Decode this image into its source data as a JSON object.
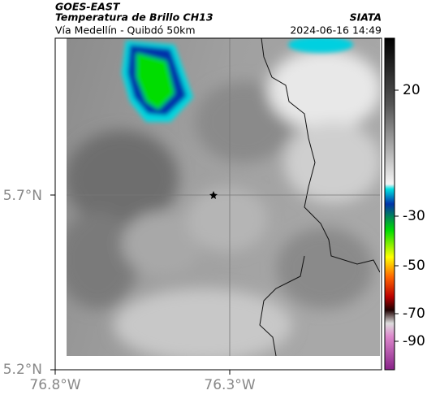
{
  "header": {
    "source": "GOES-EAST",
    "title": "Temperatura de Brillo CH13",
    "agency": "SIATA",
    "subtitle": "Vía Medellín - Quibdó 50km",
    "timestamp": "2024-06-16 14:49"
  },
  "axes": {
    "lat_labels": [
      "5.7°N",
      "5.2°N"
    ],
    "lon_labels": [
      "76.8°W",
      "76.3°W"
    ]
  },
  "colorbar": {
    "ticks": [
      20,
      -30,
      -50,
      -70,
      -90
    ]
  }
}
